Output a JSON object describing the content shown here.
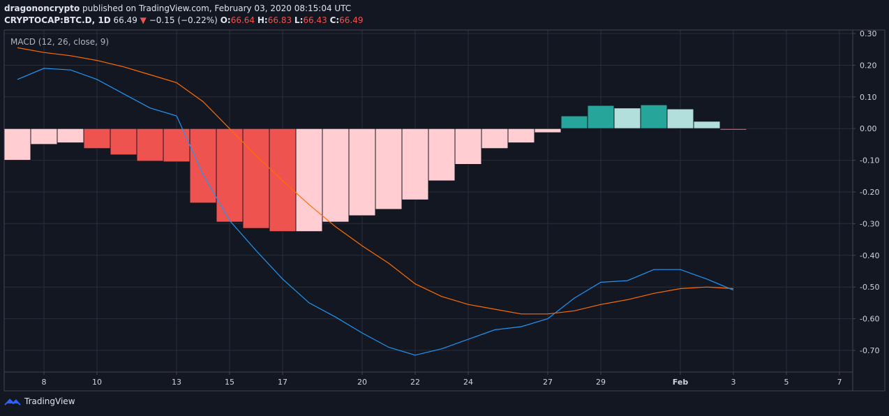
{
  "header": {
    "publisher": "dragononcrypto",
    "published_text": "published on TradingView.com, February 03, 2020 08:15:04 UTC",
    "symbol": "CRYPTOCAP:BTC.D, 1D",
    "last_price": "66.49",
    "change_arrow": "▼",
    "change": "−0.15 (−0.22%)",
    "open_label": "O:",
    "open": "66.64",
    "high_label": "H:",
    "high": "66.83",
    "low_label": "L:",
    "low": "66.43",
    "close_label": "C:",
    "close": "66.49"
  },
  "footer": {
    "brand": "TradingView",
    "logo_icon": "tradingview-logo-icon"
  },
  "colors": {
    "background": "#131722",
    "grid": "#2a2e39",
    "axis_text": "#d1d4dc",
    "macd_line": "#2196f3",
    "signal_line": "#ff6d00",
    "hist_neg_strong": "#ef5350",
    "hist_neg_weak": "#ffcdd2",
    "hist_pos_strong": "#26a69a",
    "hist_pos_weak": "#b2dfdb",
    "down": "#ef5350"
  },
  "chart_data": {
    "type": "bar",
    "indicator": "MACD (12, 26, close, 9)",
    "x_tick_labels": [
      "8",
      "10",
      "13",
      "15",
      "17",
      "20",
      "22",
      "24",
      "27",
      "29",
      "Feb",
      "3",
      "5",
      "7"
    ],
    "ylim": [
      -0.77,
      0.3
    ],
    "y_ticks": [
      "0.30",
      "0.20",
      "0.10",
      "0.00",
      "-0.10",
      "-0.20",
      "-0.30",
      "-0.40",
      "-0.50",
      "-0.60",
      "-0.70"
    ],
    "grid": true,
    "series": [
      {
        "kind": "histogram",
        "values": [
          -0.1,
          -0.05,
          -0.045,
          -0.063,
          -0.083,
          -0.103,
          -0.105,
          -0.235,
          -0.295,
          -0.315,
          -0.325,
          -0.325,
          -0.295,
          -0.275,
          -0.255,
          -0.225,
          -0.165,
          -0.113,
          -0.063,
          -0.045,
          -0.013,
          0.04,
          0.073,
          0.065,
          0.075,
          0.062,
          0.023,
          -0.005
        ],
        "shades": [
          "weak",
          "weak",
          "weak",
          "strong",
          "strong",
          "strong",
          "strong",
          "strong",
          "strong",
          "strong",
          "strong",
          "weak",
          "weak",
          "weak",
          "weak",
          "weak",
          "weak",
          "weak",
          "weak",
          "weak",
          "weak",
          "strong",
          "strong",
          "weak",
          "strong",
          "weak",
          "weak",
          "strong"
        ]
      },
      {
        "kind": "macd",
        "values": [
          0.155,
          0.19,
          0.185,
          0.155,
          0.11,
          0.065,
          0.04,
          -0.145,
          -0.29,
          -0.385,
          -0.475,
          -0.55,
          -0.595,
          -0.645,
          -0.69,
          -0.715,
          -0.695,
          -0.665,
          -0.635,
          -0.625,
          -0.6,
          -0.535,
          -0.485,
          -0.48,
          -0.445,
          -0.445,
          -0.475,
          -0.51
        ]
      },
      {
        "kind": "signal",
        "values": [
          0.255,
          0.24,
          0.23,
          0.215,
          0.195,
          0.17,
          0.145,
          0.085,
          0.0,
          -0.085,
          -0.165,
          -0.24,
          -0.31,
          -0.37,
          -0.425,
          -0.49,
          -0.53,
          -0.555,
          -0.57,
          -0.585,
          -0.585,
          -0.575,
          -0.555,
          -0.54,
          -0.52,
          -0.505,
          -0.5,
          -0.505
        ]
      }
    ]
  }
}
